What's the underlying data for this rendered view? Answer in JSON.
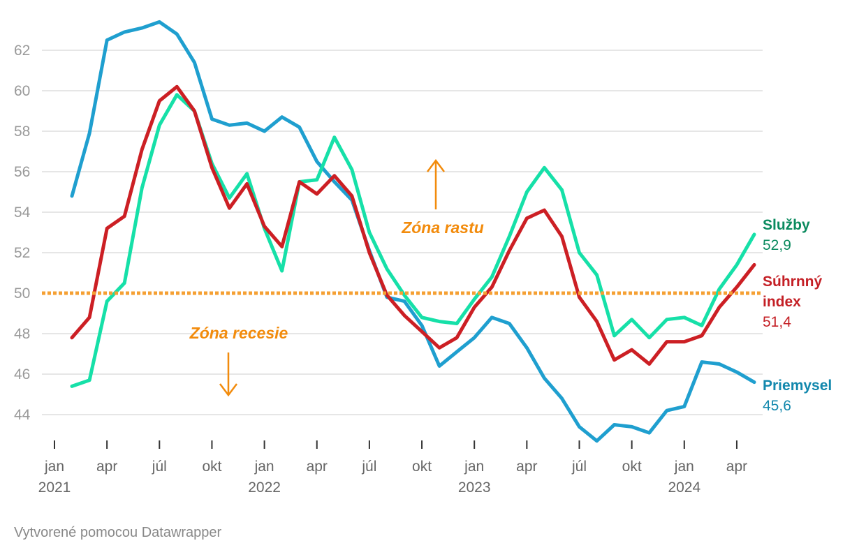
{
  "chart_data": {
    "type": "line",
    "title": "",
    "xlabel": "",
    "ylabel": "",
    "ylim": [
      42.5,
      63.5
    ],
    "yticks": [
      44,
      46,
      48,
      50,
      52,
      54,
      56,
      58,
      60,
      62
    ],
    "grid": true,
    "x_start": "2021-02",
    "months": [
      "2021-02",
      "2021-03",
      "2021-04",
      "2021-05",
      "2021-06",
      "2021-07",
      "2021-08",
      "2021-09",
      "2021-10",
      "2021-11",
      "2021-12",
      "2022-01",
      "2022-02",
      "2022-03",
      "2022-04",
      "2022-05",
      "2022-06",
      "2022-07",
      "2022-08",
      "2022-09",
      "2022-10",
      "2022-11",
      "2022-12",
      "2023-01",
      "2023-02",
      "2023-03",
      "2023-04",
      "2023-05",
      "2023-06",
      "2023-07",
      "2023-08",
      "2023-09",
      "2023-10",
      "2023-11",
      "2023-12",
      "2024-01",
      "2024-02",
      "2024-03",
      "2024-04",
      "2024-05"
    ],
    "xticks": [
      {
        "month": "2021-01",
        "label": "jan",
        "year": "2021"
      },
      {
        "month": "2021-04",
        "label": "apr",
        "year": ""
      },
      {
        "month": "2021-07",
        "label": "júl",
        "year": ""
      },
      {
        "month": "2021-10",
        "label": "okt",
        "year": ""
      },
      {
        "month": "2022-01",
        "label": "jan",
        "year": "2022"
      },
      {
        "month": "2022-04",
        "label": "apr",
        "year": ""
      },
      {
        "month": "2022-07",
        "label": "júl",
        "year": ""
      },
      {
        "month": "2022-10",
        "label": "okt",
        "year": ""
      },
      {
        "month": "2023-01",
        "label": "jan",
        "year": "2023"
      },
      {
        "month": "2023-04",
        "label": "apr",
        "year": ""
      },
      {
        "month": "2023-07",
        "label": "júl",
        "year": ""
      },
      {
        "month": "2023-10",
        "label": "okt",
        "year": ""
      },
      {
        "month": "2024-01",
        "label": "jan",
        "year": "2024"
      },
      {
        "month": "2024-04",
        "label": "apr",
        "year": ""
      }
    ],
    "reference_line": {
      "value": 50,
      "color": "#f5a033"
    },
    "series": [
      {
        "name": "Priemysel",
        "color": "#1f9fcf",
        "label_color": "#1388ad",
        "last_label": "45,6",
        "values": [
          54.8,
          57.9,
          62.5,
          62.9,
          63.1,
          63.4,
          62.8,
          61.4,
          58.6,
          58.3,
          58.4,
          58.0,
          58.7,
          58.2,
          56.5,
          55.5,
          54.6,
          52.1,
          49.8,
          49.6,
          48.4,
          46.4,
          47.1,
          47.8,
          48.8,
          48.5,
          47.3,
          45.8,
          44.8,
          43.4,
          42.7,
          43.5,
          43.4,
          43.1,
          44.2,
          44.4,
          46.6,
          46.5,
          46.1,
          45.6
        ]
      },
      {
        "name": "Služby",
        "color": "#16e0a8",
        "label_color": "#0a8a5e",
        "last_label": "52,9",
        "values": [
          45.4,
          45.7,
          49.6,
          50.5,
          55.2,
          58.3,
          59.8,
          59.0,
          56.4,
          54.7,
          55.9,
          53.2,
          51.1,
          55.5,
          55.6,
          57.7,
          56.1,
          53.0,
          51.2,
          49.9,
          48.8,
          48.6,
          48.5,
          49.7,
          50.8,
          52.8,
          55.0,
          56.2,
          55.1,
          52.0,
          50.9,
          47.9,
          48.7,
          47.8,
          48.7,
          48.8,
          48.4,
          50.2,
          51.4,
          52.9
        ]
      },
      {
        "name": "Súhrnný index",
        "name_lines": [
          "Súhrnný",
          "index"
        ],
        "color": "#cc1f24",
        "label_color": "#c41f25",
        "last_label": "51,4",
        "values": [
          47.8,
          48.8,
          53.2,
          53.8,
          57.1,
          59.5,
          60.2,
          59.0,
          56.2,
          54.2,
          55.4,
          53.3,
          52.3,
          55.5,
          54.9,
          55.8,
          54.8,
          52.0,
          49.9,
          48.9,
          48.1,
          47.3,
          47.8,
          49.3,
          50.3,
          52.1,
          53.7,
          54.1,
          52.8,
          49.8,
          48.6,
          46.7,
          47.2,
          46.5,
          47.6,
          47.6,
          47.9,
          49.3,
          50.3,
          51.4
        ]
      }
    ],
    "annotations": [
      {
        "text": "Zóna rastu",
        "arrow": "up",
        "color": "#f28b0c"
      },
      {
        "text": "Zóna recesie",
        "arrow": "down",
        "color": "#f28b0c"
      }
    ]
  },
  "footer": {
    "credit": "Vytvorené pomocou Datawrapper"
  }
}
